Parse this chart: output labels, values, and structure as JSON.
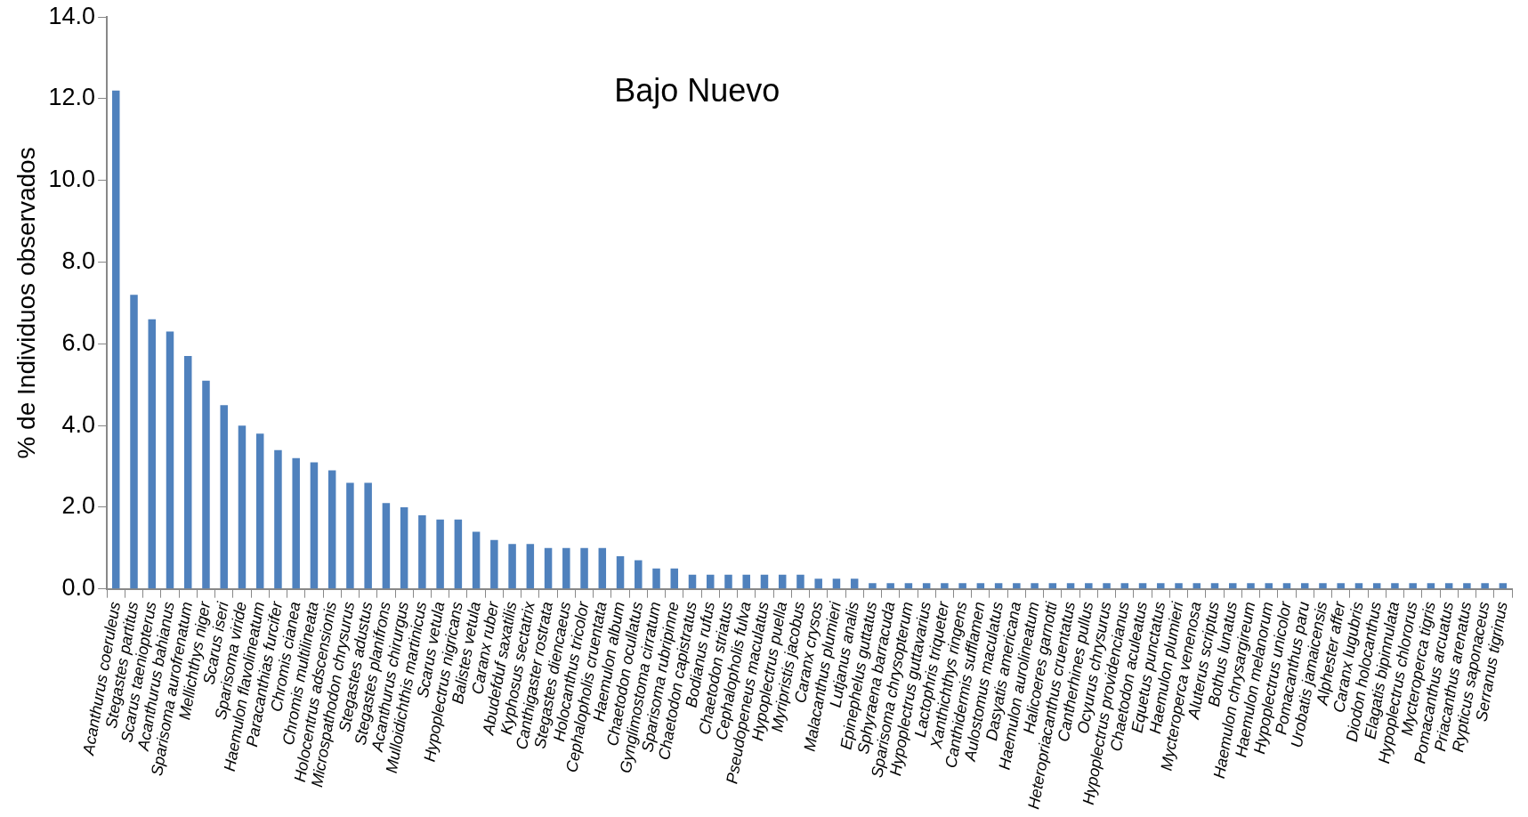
{
  "chart_data": {
    "type": "bar",
    "title": "Bajo Nuevo",
    "ylabel": "% de Individuos observados",
    "color": "#4f81bd",
    "categories": [
      "Acanthurus coeruleus",
      "Stegastes partitus",
      "Scarus taeniopterus",
      "Acanthurus bahianus",
      "Sparisoma aurofrenatum",
      "Mellichthys niger",
      "Scarus iseri",
      "Sparisoma viride",
      "Haemulon flavolineatum",
      "Paracanthias furcifer",
      "Chromis cianea",
      "Chromis multilineata",
      "Holocentrus adscensionis",
      "Microspathodon chrysurus",
      "Stegastes adustus",
      "Stegastes planifrons",
      "Acanthurus chirurgus",
      "Mulloidichthis martinicus",
      "Scarus vetula",
      "Hypoplectrus nigricans",
      "Balistes vetula",
      "Caranx ruber",
      "Abudefduf saxatilis",
      "Kyphosus sectatrix",
      "Canthigaster rostrata",
      "Stegastes diencaeus",
      "Holocanthus tricolor",
      "Cephalopholis cruentata",
      "Haemulon album",
      "Chaetodon ocullatus",
      "Gynglimostoma cirratum",
      "Sparisoma rubripinne",
      "Chaetodon capistratus",
      "Bodianus rufus",
      "Chaetodon striatus",
      "Cephalopholis fulva",
      "Pseudopeneus maculatus",
      "Hypoplectrus puella",
      "Myripristis jacobus",
      "Caranx crysos",
      "Malacanthus plumieri",
      "Lutjanus analis",
      "Epinephelus guttatus",
      "Sphyraena barracuda",
      "Sparisoma chrysopterum",
      "Hypoplectrus guttavarius",
      "Lactophris triqueter",
      "Xanthichthys ringens",
      "Canthidermis sufflamen",
      "Aulostomus maculatus",
      "Dasyatis americana",
      "Haemulon aurolineatum",
      "Halicoeres garnotti",
      "Heteropriacanthus cruentatus",
      "Cantherhines pullus",
      "Ocyurus chrysurus",
      "Hypoplectrus providencianus",
      "Chaetodon aculeatus",
      "Equetus punctatus",
      "Haemulon plumieri",
      "Mycteroperca venenosa",
      "Aluterus scriptus",
      "Bothus lunatus",
      "Haemulon chrysargireum",
      "Haemulon melanorum",
      "Hypoplectrus unicolor",
      "Pomacanthus paru",
      "Urobatis jamaicensis",
      "Alphester affer",
      "Caranx lugubris",
      "Diodon holocanthus",
      "Elagatis bipinnulata",
      "Hypoplectrus chlororus",
      "Mycteroperca tigris",
      "Pomacanthus arcuatus",
      "Priacanthus arenatus",
      "Rypticus saponaceus",
      "Serranus tigrinus"
    ],
    "values": [
      12.2,
      7.2,
      6.6,
      6.3,
      5.7,
      5.1,
      4.5,
      4.0,
      3.8,
      3.4,
      3.2,
      3.1,
      2.9,
      2.6,
      2.6,
      2.1,
      2.0,
      1.8,
      1.7,
      1.7,
      1.4,
      1.2,
      1.1,
      1.1,
      1.0,
      1.0,
      1.0,
      1.0,
      0.8,
      0.7,
      0.5,
      0.5,
      0.35,
      0.35,
      0.35,
      0.35,
      0.35,
      0.35,
      0.35,
      0.25,
      0.25,
      0.25,
      0.14,
      0.14,
      0.14,
      0.14,
      0.14,
      0.14,
      0.14,
      0.14,
      0.14,
      0.14,
      0.14,
      0.14,
      0.14,
      0.14,
      0.14,
      0.14,
      0.14,
      0.14,
      0.14,
      0.14,
      0.14,
      0.14,
      0.14,
      0.14,
      0.14,
      0.14,
      0.14,
      0.14,
      0.14,
      0.14,
      0.14,
      0.14,
      0.14,
      0.14,
      0.14,
      0.14
    ],
    "ylim": [
      0,
      14
    ],
    "yticks": [
      {
        "value": 0,
        "label": "0.0"
      },
      {
        "value": 2,
        "label": "2.0"
      },
      {
        "value": 4,
        "label": "4.0"
      },
      {
        "value": 6,
        "label": "6.0"
      },
      {
        "value": 8,
        "label": "8.0"
      },
      {
        "value": 10,
        "label": "10.0"
      },
      {
        "value": 12,
        "label": "12.0"
      },
      {
        "value": 14,
        "label": "14.0"
      }
    ],
    "grid": false,
    "legend": false
  }
}
